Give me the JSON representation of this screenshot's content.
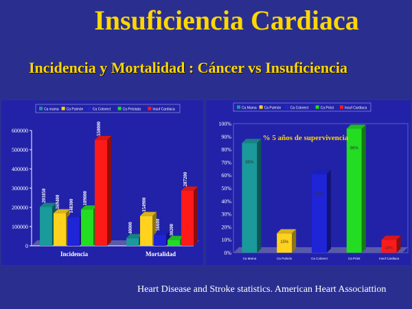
{
  "slide": {
    "title": "Insuficiencia Cardiaca",
    "subtitle": "Incidencia y Mortalidad : Cáncer  vs  Insuficiencia",
    "footer": "Heart Disease and Stroke statistics. American Heart Associattion"
  },
  "chart_data": [
    {
      "type": "bar",
      "categories": [
        "Incidencia",
        "Mortalidad"
      ],
      "series": [
        {
          "name": "Ca mama",
          "color": "#1a9a9a",
          "values": [
            201850,
            40000
          ]
        },
        {
          "name": "Ca Pulmón",
          "color": "#ffd21e",
          "values": [
            169400,
            154900
          ]
        },
        {
          "name": "Ca Colorect",
          "color": "#1f24d6",
          "values": [
            148300,
            56600
          ]
        },
        {
          "name": "Ca Próstata",
          "color": "#22dd22",
          "values": [
            189000,
            30200
          ]
        },
        {
          "name": "Insuf Cardiaca",
          "color": "#ff1a1a",
          "values": [
            550000,
            287200
          ]
        }
      ],
      "data_labels": [
        [
          "201850",
          "169400",
          "148300",
          "189000",
          "550000"
        ],
        [
          "40000",
          "154900",
          "56600",
          "30200",
          "287200"
        ]
      ],
      "yticks": [
        "0",
        "100000",
        "200000",
        "300000",
        "400000",
        "500000",
        "600000"
      ],
      "ylim": [
        0,
        600000
      ]
    },
    {
      "type": "bar",
      "title": "% 5 años de supervivencia",
      "categories": [
        "Ca Mama",
        "Ca Pulmón",
        "Ca Colorect",
        "Ca Próst",
        "Insuf Cardiaca"
      ],
      "series": [
        {
          "name": "Ca Mama",
          "color": "#1a9a9a"
        },
        {
          "name": "Ca Pulmón",
          "color": "#ffd21e"
        },
        {
          "name": "Ca Colorect",
          "color": "#1f24d6"
        },
        {
          "name": "Ca Próst",
          "color": "#22dd22"
        },
        {
          "name": "Insuf Cardiaca",
          "color": "#ff1a1a"
        }
      ],
      "values": [
        85,
        15,
        61,
        96,
        10
      ],
      "data_labels": [
        "85%",
        "15%",
        "61%",
        "96%",
        "10%"
      ],
      "yticks": [
        "0%",
        "10%",
        "20%",
        "30%",
        "40%",
        "50%",
        "60%",
        "70%",
        "80%",
        "90%",
        "100%"
      ],
      "ylim": [
        0,
        100
      ]
    }
  ]
}
